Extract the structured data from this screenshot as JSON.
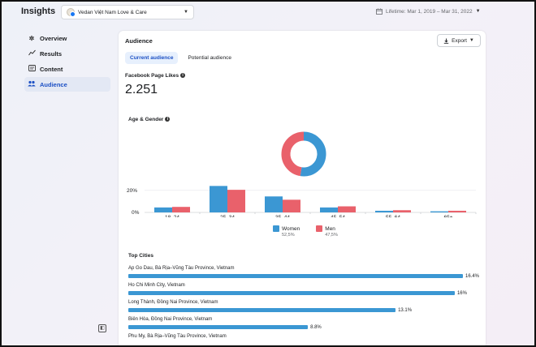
{
  "app": {
    "title": "Insights"
  },
  "header": {
    "page_name": "Vedan Việt Nam Love & Care",
    "date_range": "Lifetime: Mar 1, 2019 – Mar 31, 2022"
  },
  "sidebar": {
    "items": [
      {
        "label": "Overview",
        "icon": "sparkle-icon"
      },
      {
        "label": "Results",
        "icon": "trend-icon"
      },
      {
        "label": "Content",
        "icon": "content-icon"
      },
      {
        "label": "Audience",
        "icon": "people-icon"
      }
    ],
    "active": "Audience"
  },
  "panel": {
    "title": "Audience",
    "export_label": "Export",
    "tabs": [
      "Current audience",
      "Potential audience"
    ],
    "likes_label": "Facebook Page Likes",
    "likes_value": "2.251",
    "age_label": "Age & Gender",
    "cities_label": "Top Cities"
  },
  "colors": {
    "women": "#3b97d3",
    "men": "#e9616b",
    "accent": "#1b4fc4"
  },
  "chart_data": {
    "type": "bar",
    "categories": [
      "18–24",
      "25–34",
      "35–44",
      "45–54",
      "55–64",
      "65+"
    ],
    "series": [
      {
        "name": "Women",
        "values": [
          4.5,
          24,
          14.5,
          4.5,
          1.5,
          1.0
        ]
      },
      {
        "name": "Men",
        "values": [
          5,
          20.5,
          11.5,
          5.5,
          2.0,
          1.5
        ]
      }
    ],
    "ylim": [
      0,
      25
    ],
    "yticks": [
      "20%",
      "0%"
    ],
    "legend": [
      {
        "name": "Women",
        "pct": "52,5%"
      },
      {
        "name": "Men",
        "pct": "47,5%"
      }
    ],
    "donut": {
      "Women": 52.5,
      "Men": 47.5
    }
  },
  "cities": [
    {
      "name": "Ap Go Dau, Bà Rịa–Vũng Tàu Province, Vietnam",
      "pct": "16.4%",
      "value": 16.4
    },
    {
      "name": "Ho Chi Minh City, Vietnam",
      "pct": "16%",
      "value": 16.0
    },
    {
      "name": "Long Thành, Đồng Nai Province, Vietnam",
      "pct": "13.1%",
      "value": 13.1
    },
    {
      "name": "Biên Hòa, Đồng Nai Province, Vietnam",
      "pct": "8.8%",
      "value": 8.8
    },
    {
      "name": "Phu My, Bà Rịa–Vũng Tàu Province, Vietnam",
      "pct": "",
      "value": 0
    }
  ]
}
